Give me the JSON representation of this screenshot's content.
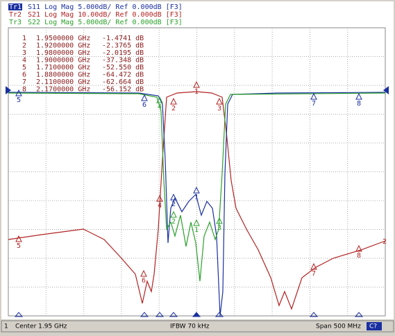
{
  "traces": [
    {
      "id": "Tr1",
      "text": "S11 Log Mag 5.000dB/ Ref 0.000dB [F3]"
    },
    {
      "id": "Tr2",
      "text": "S21 Log Mag 10.00dB/ Ref 0.000dB [F3]"
    },
    {
      "id": "Tr3",
      "text": "S22 Log Mag 5.000dB/ Ref 0.000dB [F3]"
    }
  ],
  "markers": [
    {
      "num": "1",
      "freq": "1.9500000 GHz",
      "value": "-1.4741 dB"
    },
    {
      "num": "2",
      "freq": "1.9200000 GHz",
      "value": "-2.3765 dB"
    },
    {
      "num": "3",
      "freq": "1.9800000 GHz",
      "value": "-2.0195 dB"
    },
    {
      "num": "4",
      "freq": "1.9000000 GHz",
      "value": "-37.348 dB"
    },
    {
      "num": "5",
      "freq": "1.7100000 GHz",
      "value": "-52.550 dB"
    },
    {
      "num": "6",
      "freq": "1.8800000 GHz",
      "value": "-64.472 dB"
    },
    {
      "num": "7",
      "freq": "2.1100000 GHz",
      "value": "-62.664 dB"
    },
    {
      "num": "8",
      "freq": "2.1700000 GHz",
      "value": "-56.152 dB"
    }
  ],
  "trace_end_label": "2",
  "status": {
    "channel": "1",
    "center": "Center 1.95 GHz",
    "ifbw": "IFBW 70 kHz",
    "span": "Span 500 MHz",
    "cal": "C?"
  }
}
